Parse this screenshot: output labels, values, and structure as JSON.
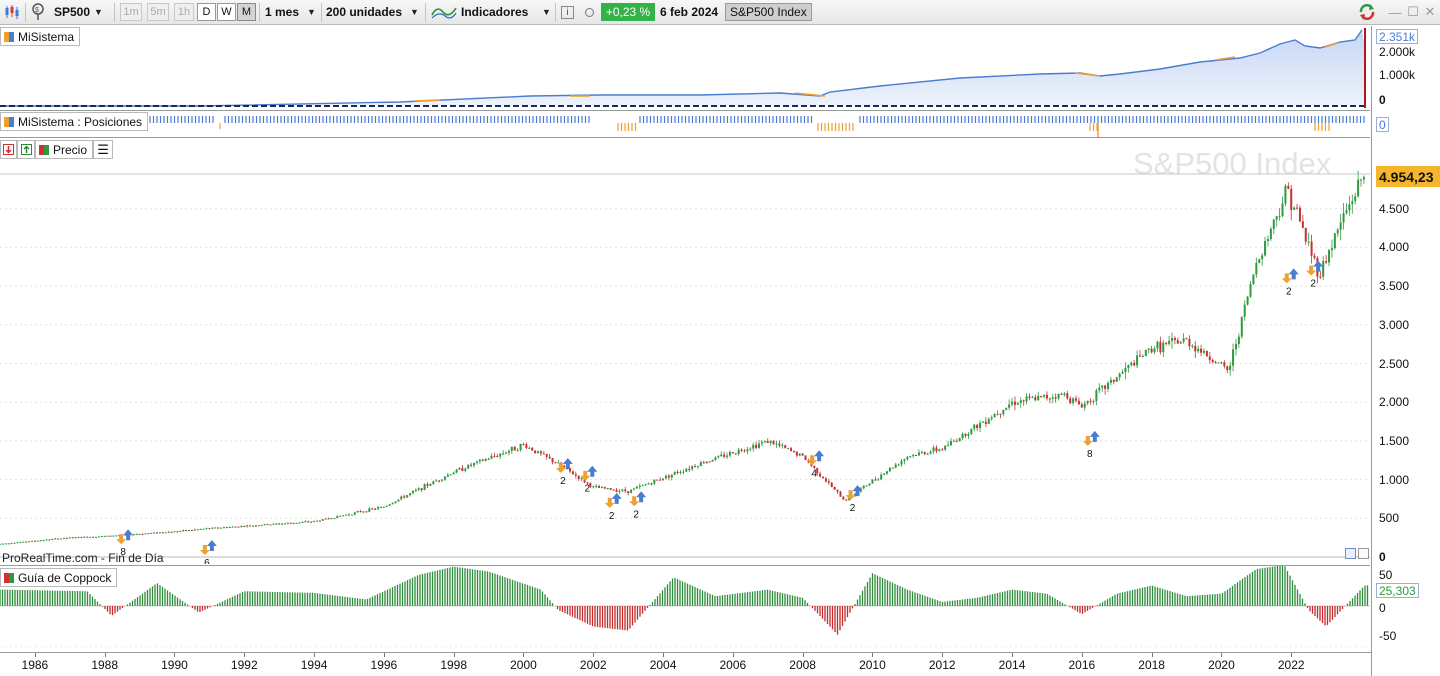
{
  "toolbar": {
    "symbol": "SP500",
    "timeframes": [
      "1m",
      "5m",
      "1h",
      "D",
      "W",
      "M"
    ],
    "period": "1 mes",
    "units": "200 unidades",
    "indicators": "Indicadores",
    "change": "+0,23 %",
    "date": "6 feb 2024",
    "instrument": "S&P500 Index",
    "info_icon": "i"
  },
  "panels": {
    "equity": {
      "label": "MiSistema",
      "axis": [
        "2.351k",
        "2.000k",
        "1.000k",
        "0"
      ]
    },
    "positions": {
      "label": "MiSistema : Posiciones",
      "value": "0"
    },
    "price": {
      "label": "Precio",
      "watermark": "S&P500 Index",
      "last_price": "4.954,23",
      "axis": [
        "4.500",
        "4.000",
        "3.500",
        "3.000",
        "2.500",
        "2.000",
        "1.500",
        "1.000",
        "500",
        "0"
      ],
      "source": "ProRealTime.com - Fin de Día",
      "markers": [
        "8",
        "6",
        "2",
        "2",
        "2",
        "2",
        "4",
        "2",
        "8",
        "2",
        "2"
      ]
    },
    "coppock": {
      "label": "Guía de Coppock",
      "axis": [
        "50",
        "0",
        "-50"
      ],
      "value": "25,303"
    }
  },
  "x_axis": [
    "1986",
    "1988",
    "1990",
    "1992",
    "1994",
    "1996",
    "1998",
    "2000",
    "2002",
    "2004",
    "2006",
    "2008",
    "2010",
    "2012",
    "2014",
    "2016",
    "2018",
    "2020",
    "2022"
  ],
  "chart_data": {
    "type": "line",
    "title": "S&P500 Index",
    "series": [
      {
        "name": "S&P500 Index",
        "x": [
          1985,
          1987,
          1988,
          1990,
          1991,
          1994,
          1996,
          1998,
          2000,
          2001,
          2002,
          2003,
          2005,
          2007,
          2008,
          2009.2,
          2011,
          2012,
          2014,
          2015.5,
          2016,
          2018,
          2019,
          2020.2,
          2021,
          2021.9,
          2022.8,
          2023.5,
          2024.1
        ],
        "values": [
          170,
          250,
          270,
          330,
          370,
          460,
          650,
          1100,
          1450,
          1200,
          900,
          850,
          1200,
          1500,
          1300,
          730,
          1300,
          1400,
          2000,
          2100,
          1950,
          2700,
          2800,
          2400,
          3800,
          4760,
          3650,
          4400,
          4954
        ]
      }
    ],
    "xlim": [
      1985,
      2024.2
    ],
    "ylim": [
      0,
      5000
    ],
    "coppock": {
      "x": [
        1985,
        1987.5,
        1988.2,
        1989.5,
        1990.7,
        1992,
        1994,
        1995.5,
        1997,
        1998,
        1999,
        2000.5,
        2001,
        2002,
        2003,
        2003.5,
        2004.3,
        2005.5,
        2007,
        2008,
        2009,
        2010,
        2011,
        2012,
        2013,
        2014,
        2015,
        2016,
        2017,
        2018,
        2019,
        2020,
        2021,
        2021.8,
        2022.5,
        2023,
        2024.1
      ],
      "values": [
        20,
        18,
        -12,
        28,
        -8,
        18,
        16,
        8,
        38,
        48,
        42,
        20,
        -5,
        -25,
        -30,
        -5,
        35,
        12,
        20,
        10,
        -35,
        40,
        20,
        5,
        10,
        20,
        15,
        -10,
        15,
        25,
        12,
        15,
        45,
        50,
        -5,
        -25,
        25
      ]
    },
    "coppock_ylim": [
      -70,
      55
    ]
  }
}
